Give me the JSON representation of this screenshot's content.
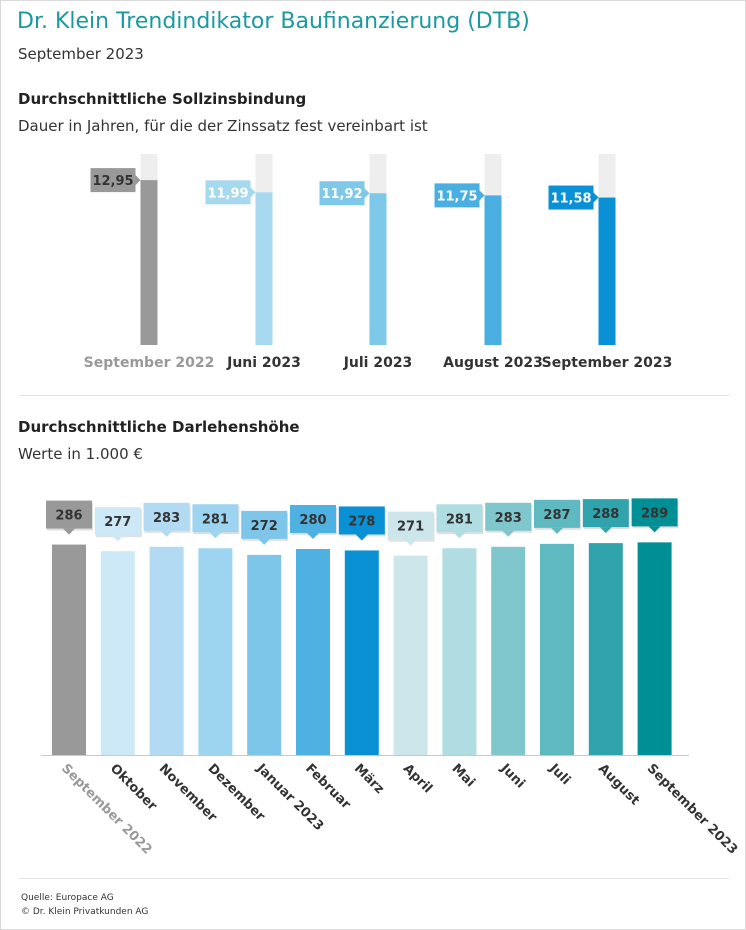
{
  "header": {
    "title": "Dr. Klein Trendindikator Baufinanzierung (DTB)",
    "subtitle": "September 2023"
  },
  "colors": {
    "title": "#1a9aa0",
    "gray": "#999999",
    "track": "#eeeeee"
  },
  "chart_data": [
    {
      "type": "bar",
      "title": "Durchschnittliche Sollzinsbindung",
      "subtitle": "Dauer in Jahren, für die der Zinssatz fest vereinbart ist",
      "categories": [
        "September 2022",
        "Juni 2023",
        "Juli 2023",
        "August 2023",
        "September 2023"
      ],
      "values": [
        12.95,
        11.99,
        11.92,
        11.75,
        11.58
      ],
      "value_labels": [
        "12,95",
        "11,99",
        "11,92",
        "11,75",
        "11,58"
      ],
      "ylim": [
        0,
        15
      ],
      "colors": [
        "#999999",
        "#a6d8f0",
        "#7ec8ea",
        "#4aafe0",
        "#0a90d4"
      ],
      "label_colors": [
        "#999999",
        "#333333",
        "#333333",
        "#333333",
        "#333333"
      ],
      "grid": false
    },
    {
      "type": "bar",
      "title": "Durchschnittliche Darlehenshöhe",
      "subtitle": "Werte in 1.000 €",
      "categories": [
        "September 2022",
        "Oktober",
        "November",
        "Dezember",
        "Januar 2023",
        "Februar",
        "März",
        "April",
        "Mai",
        "Juni",
        "Juli",
        "August",
        "September 2023"
      ],
      "values": [
        286,
        277,
        283,
        281,
        272,
        280,
        278,
        271,
        281,
        283,
        287,
        288,
        289
      ],
      "ylim": [
        0,
        386
      ],
      "colors": [
        "#999999",
        "#cde8f6",
        "#b2dbf3",
        "#9dd4ef",
        "#7dc6ea",
        "#4eb1e1",
        "#0a90d4",
        "#cce6ec",
        "#b0dde2",
        "#80c7cd",
        "#5fb9c0",
        "#30a4ac",
        "#008f94"
      ],
      "label_dark": [
        true,
        false,
        false,
        false,
        false,
        true,
        true,
        false,
        false,
        false,
        false,
        false,
        true
      ],
      "label_colors": [
        "#999999",
        "#333333",
        "#333333",
        "#333333",
        "#333333",
        "#333333",
        "#333333",
        "#333333",
        "#333333",
        "#333333",
        "#333333",
        "#333333",
        "#333333"
      ],
      "grid": false
    }
  ],
  "footer": {
    "source": "Quelle: Europace AG",
    "copyright": "© Dr. Klein Privatkunden AG"
  }
}
